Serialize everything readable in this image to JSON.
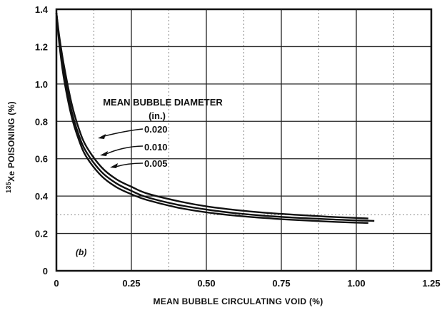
{
  "chart_data": {
    "type": "line",
    "xlabel": "MEAN BUBBLE CIRCULATING VOID (%)",
    "ylabel_super": "135",
    "ylabel_main": "Xe POISONING (%)",
    "xlim": [
      0,
      1.25
    ],
    "ylim": [
      0,
      1.4
    ],
    "x_ticks": [
      "0",
      "0.25",
      "0.50",
      "0.75",
      "1.00",
      "1.25"
    ],
    "y_ticks": [
      "0",
      "0.2",
      "0.4",
      "0.6",
      "0.8",
      "1.0",
      "1.2",
      "1.4"
    ],
    "x_tick_values": [
      0,
      0.25,
      0.5,
      0.75,
      1.0,
      1.25
    ],
    "y_tick_values": [
      0,
      0.2,
      0.4,
      0.6,
      0.8,
      1.0,
      1.2,
      1.4
    ],
    "x_minor_grid": [
      0.125,
      0.375,
      0.625,
      0.875,
      1.125
    ],
    "y_minor_grid": [
      0.3
    ],
    "grid": true,
    "panel_label": "(b)",
    "legend_title": "MEAN BUBBLE DIAMETER",
    "legend_unit": "(in.)",
    "series": [
      {
        "name": "0.020",
        "label_anchor": [
          0.29,
          0.2
        ],
        "points": [
          [
            0,
            1.38
          ],
          [
            0.01,
            1.25
          ],
          [
            0.025,
            1.1
          ],
          [
            0.05,
            0.9
          ],
          [
            0.075,
            0.76
          ],
          [
            0.1,
            0.665
          ],
          [
            0.15,
            0.555
          ],
          [
            0.2,
            0.49
          ],
          [
            0.25,
            0.45
          ],
          [
            0.3,
            0.415
          ],
          [
            0.4,
            0.375
          ],
          [
            0.5,
            0.345
          ],
          [
            0.6,
            0.325
          ],
          [
            0.7,
            0.31
          ],
          [
            0.8,
            0.3
          ],
          [
            0.9,
            0.29
          ],
          [
            1.0,
            0.283
          ],
          [
            1.04,
            0.28
          ]
        ]
      },
      {
        "name": "0.010",
        "label_anchor": [
          0.29,
          0.2
        ],
        "points": [
          [
            0,
            1.38
          ],
          [
            0.01,
            1.23
          ],
          [
            0.025,
            1.06
          ],
          [
            0.05,
            0.86
          ],
          [
            0.075,
            0.725
          ],
          [
            0.1,
            0.635
          ],
          [
            0.15,
            0.53
          ],
          [
            0.2,
            0.468
          ],
          [
            0.25,
            0.428
          ],
          [
            0.3,
            0.395
          ],
          [
            0.4,
            0.355
          ],
          [
            0.5,
            0.328
          ],
          [
            0.6,
            0.308
          ],
          [
            0.7,
            0.294
          ],
          [
            0.8,
            0.284
          ],
          [
            0.9,
            0.276
          ],
          [
            1.0,
            0.27
          ],
          [
            1.06,
            0.267
          ]
        ]
      },
      {
        "name": "0.005",
        "label_anchor": [
          0.29,
          0.2
        ],
        "points": [
          [
            0,
            1.38
          ],
          [
            0.01,
            1.21
          ],
          [
            0.025,
            1.03
          ],
          [
            0.05,
            0.83
          ],
          [
            0.075,
            0.7
          ],
          [
            0.1,
            0.61
          ],
          [
            0.15,
            0.508
          ],
          [
            0.2,
            0.448
          ],
          [
            0.25,
            0.41
          ],
          [
            0.3,
            0.38
          ],
          [
            0.4,
            0.34
          ],
          [
            0.5,
            0.313
          ],
          [
            0.6,
            0.295
          ],
          [
            0.7,
            0.282
          ],
          [
            0.8,
            0.272
          ],
          [
            0.9,
            0.264
          ],
          [
            1.0,
            0.258
          ],
          [
            1.04,
            0.256
          ]
        ]
      }
    ]
  }
}
